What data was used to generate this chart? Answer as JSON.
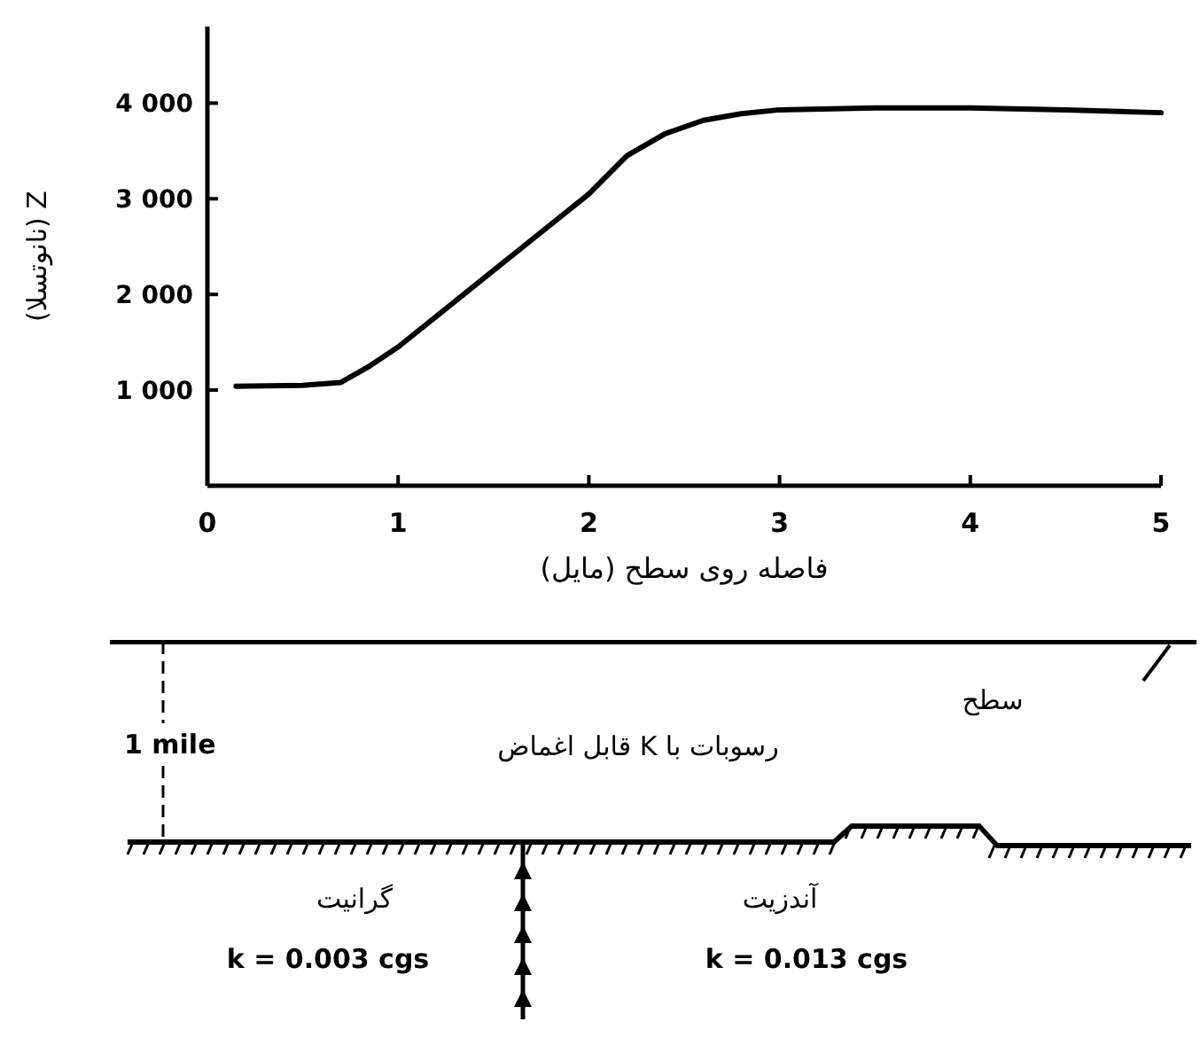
{
  "chart_data": {
    "type": "line",
    "xlabel": "فاصله روی سطح (مایل)",
    "ylabel": "Z (نانوتسلا)",
    "xlim": [
      0,
      5
    ],
    "xticks": [
      0,
      1,
      2,
      3,
      4,
      5
    ],
    "ylim": [
      0,
      4800
    ],
    "yticks": [
      {
        "value": 1000,
        "label": "1 000"
      },
      {
        "value": 2000,
        "label": "2 000"
      },
      {
        "value": 3000,
        "label": "3 000"
      },
      {
        "value": 4000,
        "label": "4 000"
      }
    ],
    "grid": false,
    "series": [
      {
        "color": "#000000",
        "x": [
          0.15,
          0.5,
          0.7,
          0.85,
          1.0,
          1.25,
          1.5,
          1.75,
          2.0,
          2.2,
          2.4,
          2.6,
          2.8,
          3.0,
          3.5,
          4.0,
          4.5,
          5.0
        ],
        "values": [
          1040,
          1050,
          1080,
          1250,
          1450,
          1850,
          2250,
          2650,
          3050,
          3450,
          3680,
          3820,
          3890,
          3930,
          3950,
          3950,
          3930,
          3900
        ]
      }
    ],
    "annotations": [
      "سطح",
      "رسوبات با K قابل اغماض",
      "1 mile",
      "گرانیت",
      "k = 0.003 cgs",
      "آندزیت",
      "k = 0.013 cgs"
    ]
  }
}
